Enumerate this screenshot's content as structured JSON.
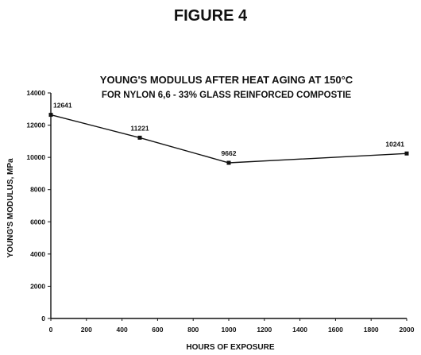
{
  "figure_label": "FIGURE 4",
  "chart_data": {
    "type": "line",
    "title": "YOUNG'S MODULUS AFTER HEAT AGING AT 150°C",
    "subtitle": "FOR NYLON 6,6 - 33% GLASS REINFORCED COMPOSTIE",
    "xlabel": "HOURS OF EXPOSURE",
    "ylabel": "YOUNG'S MODULUS, MPa",
    "xlim": [
      0,
      2000
    ],
    "ylim": [
      0,
      14000
    ],
    "x_ticks": [
      0,
      200,
      400,
      600,
      800,
      1000,
      1200,
      1400,
      1600,
      1800,
      2000
    ],
    "y_ticks": [
      0,
      2000,
      4000,
      6000,
      8000,
      10000,
      12000,
      14000
    ],
    "grid": false,
    "series": [
      {
        "x": [
          0,
          500,
          1000,
          2000
        ],
        "values": [
          12641,
          11221,
          9662,
          10241
        ],
        "data_labels": [
          "12641",
          "11221",
          "9662",
          "10241"
        ]
      }
    ],
    "line_color": "#111111"
  }
}
